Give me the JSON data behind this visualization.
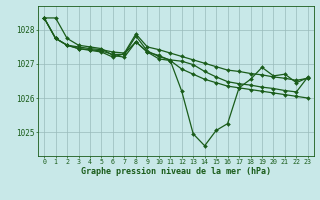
{
  "bg_color": "#c8e8e8",
  "grid_color": "#99bbbb",
  "line_color": "#1a5c1a",
  "title": "Graphe pression niveau de la mer (hPa)",
  "ylim": [
    1024.3,
    1028.7
  ],
  "yticks": [
    1025,
    1026,
    1027,
    1028
  ],
  "series": [
    [
      1028.35,
      1028.35,
      1027.75,
      1027.55,
      1027.5,
      1027.45,
      1027.25,
      1027.2,
      1027.65,
      1027.35,
      1027.25,
      1027.1,
      1026.2,
      1024.95,
      1024.6,
      1025.05,
      1025.25,
      1026.3,
      1026.55,
      1026.9,
      1026.65,
      1026.7,
      1026.45,
      1026.6
    ],
    [
      1028.35,
      1027.75,
      1027.55,
      1027.45,
      1027.4,
      1027.35,
      1027.2,
      1027.3,
      1027.65,
      1027.35,
      1027.15,
      1027.1,
      1026.85,
      1026.7,
      1026.55,
      1026.45,
      1026.35,
      1026.3,
      1026.25,
      1026.2,
      1026.15,
      1026.1,
      1026.05,
      1026.0
    ],
    [
      1028.35,
      1027.75,
      1027.55,
      1027.45,
      1027.42,
      1027.38,
      1027.28,
      1027.28,
      1027.82,
      1027.38,
      1027.22,
      1027.12,
      1027.08,
      1026.98,
      1026.78,
      1026.62,
      1026.48,
      1026.42,
      1026.38,
      1026.32,
      1026.28,
      1026.22,
      1026.18,
      1026.62
    ],
    [
      1028.35,
      1027.75,
      1027.55,
      1027.5,
      1027.45,
      1027.42,
      1027.35,
      1027.32,
      1027.88,
      1027.5,
      1027.42,
      1027.32,
      1027.22,
      1027.12,
      1027.02,
      1026.92,
      1026.82,
      1026.78,
      1026.72,
      1026.68,
      1026.62,
      1026.58,
      1026.52,
      1026.58
    ]
  ]
}
